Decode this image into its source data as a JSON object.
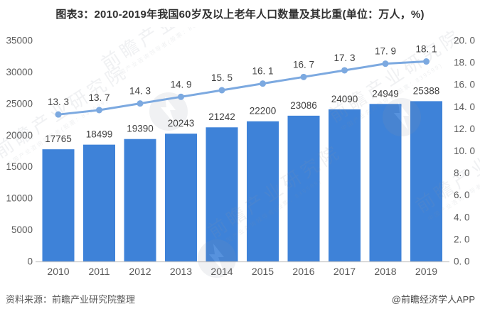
{
  "page": {
    "title": "图表3：2010-2019年我国60岁及以上老年人口数量及其比重(单位：万人，%)",
    "source": "资料来源：前瞻产业研究院整理",
    "credit": "@前瞻经济学人APP"
  },
  "watermark": {
    "brand": "前瞻产业研究院",
    "tagline": "中国产业咨询领导者(股票：839599)"
  },
  "colors": {
    "bar": "#3E82D8",
    "line": "#7CA9E0",
    "marker": "#7CA9E0",
    "axis_line": "#C8C8C8",
    "tick_text": "#595959",
    "data_label": "#404040",
    "watermark": "#8D96A0"
  },
  "chart_data": {
    "type": "combo",
    "title": "图表3：2010-2019年我国60岁及以上老年人口数量及其比重(单位：万人，%)",
    "categories": [
      "2010",
      "2011",
      "2012",
      "2013",
      "2014",
      "2015",
      "2016",
      "2017",
      "2018",
      "2019"
    ],
    "series": [
      {
        "id": "elderly-population-bars",
        "type": "bar",
        "axis": "left",
        "values": [
          17765,
          18499,
          19390,
          20243,
          21242,
          22200,
          23086,
          24090,
          24949,
          25388
        ],
        "labels": [
          "17765",
          "18499",
          "19390",
          "20243",
          "21242",
          "22200",
          "23086",
          "24090",
          "24949",
          "25388"
        ]
      },
      {
        "id": "elderly-share-line",
        "type": "line",
        "axis": "right",
        "values": [
          13.3,
          13.7,
          14.3,
          14.9,
          15.5,
          16.1,
          16.7,
          17.3,
          17.9,
          18.1
        ],
        "labels": [
          "13. 3",
          "13. 7",
          "14. 3",
          "14. 9",
          "15. 5",
          "16. 1",
          "16. 7",
          "17. 3",
          "17. 9",
          "18. 1"
        ]
      }
    ],
    "left_axis": {
      "min": 0,
      "max": 35000,
      "step": 5000,
      "tick_labels": [
        "0",
        "5000",
        "10000",
        "15000",
        "20000",
        "25000",
        "30000",
        "35000"
      ]
    },
    "right_axis": {
      "min": 0,
      "max": 20,
      "step": 2,
      "tick_labels": [
        "0. 0",
        "2. 0",
        "4. 0",
        "6. 0",
        "8. 0",
        "10. 0",
        "12. 0",
        "14. 0",
        "16. 0",
        "18. 0",
        "20. 0"
      ]
    },
    "grid": false,
    "legend": "none"
  }
}
